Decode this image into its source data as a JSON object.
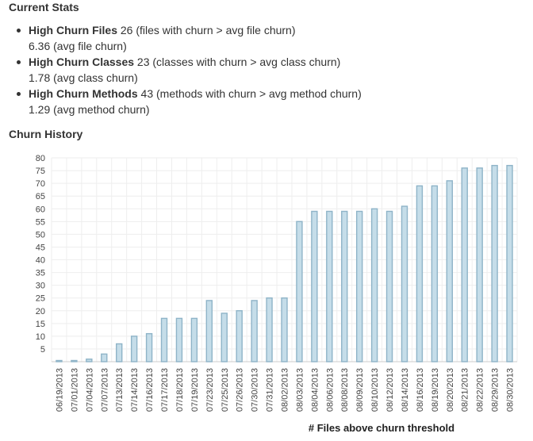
{
  "current_stats": {
    "heading": "Current Stats",
    "items": [
      {
        "name": "High Churn Files",
        "value": "26",
        "description": "(files with churn > avg file churn)",
        "avg_value": "6.36",
        "avg_description": "(avg file churn)"
      },
      {
        "name": "High Churn Classes",
        "value": "23",
        "description": "(classes with churn > avg class churn)",
        "avg_value": "1.78",
        "avg_description": "(avg class churn)"
      },
      {
        "name": "High Churn Methods",
        "value": "43",
        "description": "(methods with churn > avg method churn)",
        "avg_value": "1.29",
        "avg_description": "(avg method churn)"
      }
    ]
  },
  "churn_history": {
    "heading": "Churn History"
  },
  "chart_data": {
    "type": "bar",
    "title": "",
    "xlabel": "# Files above churn threshold",
    "ylabel": "",
    "ylim": [
      0,
      80
    ],
    "yticks": [
      5,
      10,
      15,
      20,
      25,
      30,
      35,
      40,
      45,
      50,
      55,
      60,
      65,
      70,
      75,
      80
    ],
    "grid": true,
    "categories": [
      "06/19/2013",
      "07/01/2013",
      "07/04/2013",
      "07/07/2013",
      "07/13/2013",
      "07/14/2013",
      "07/16/2013",
      "07/17/2013",
      "07/18/2013",
      "07/19/2013",
      "07/23/2013",
      "07/25/2013",
      "07/26/2013",
      "07/30/2013",
      "07/31/2013",
      "08/02/2013",
      "08/03/2013",
      "08/04/2013",
      "08/06/2013",
      "08/08/2013",
      "08/09/2013",
      "08/10/2013",
      "08/12/2013",
      "08/14/2013",
      "08/16/2013",
      "08/19/2013",
      "08/20/2013",
      "08/21/2013",
      "08/22/2013",
      "08/29/2013",
      "08/30/2013"
    ],
    "values": [
      0,
      0,
      1,
      3,
      7,
      10,
      11,
      17,
      17,
      17,
      24,
      19,
      20,
      24,
      25,
      25,
      55,
      59,
      59,
      59,
      59,
      60,
      59,
      61,
      69,
      69,
      71,
      76,
      76,
      77,
      77
    ],
    "colors": {
      "bar_fill": "#c5dde9",
      "bar_stroke": "#8fb4c8"
    }
  }
}
